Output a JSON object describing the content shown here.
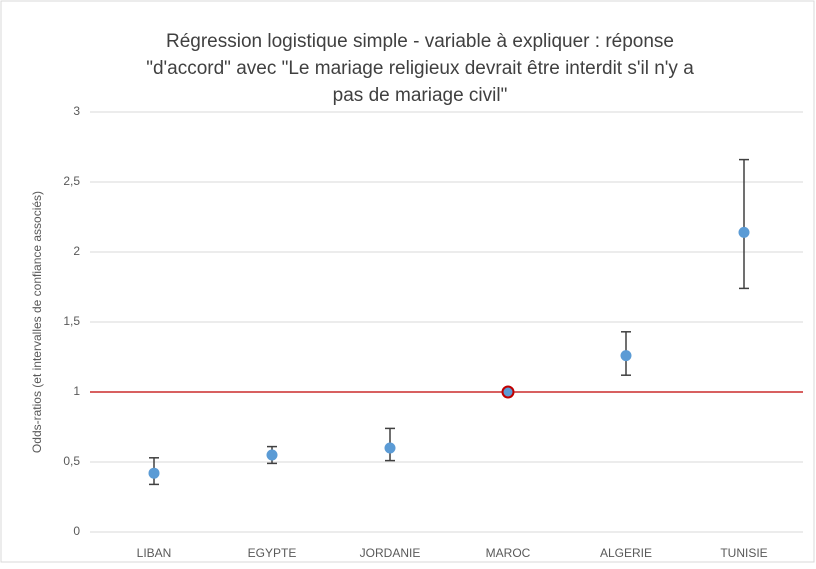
{
  "chart_data": {
    "type": "errorbar",
    "title": [
      "Régression logistique simple - variable à expliquer : réponse",
      "\"d'accord\" avec \"Le mariage religieux devrait être interdit s'il n'y a",
      "pas de mariage civil\""
    ],
    "y_label": "Odds-ratios (et intervalles de confiance associés)",
    "categories": [
      "LIBAN",
      "EGYPTE",
      "JORDANIE",
      "MAROC",
      "ALGERIE",
      "TUNISIE"
    ],
    "series": [
      {
        "color": "#5b9bd5",
        "values": [
          0.42,
          0.55,
          0.6,
          1,
          1.26,
          2.14
        ],
        "lower": [
          0.34,
          0.49,
          0.51,
          null,
          1.12,
          1.74
        ],
        "upper": [
          0.53,
          0.61,
          0.74,
          null,
          1.43,
          2.66
        ],
        "point_edge_colors": [
          null,
          null,
          null,
          "#c00000",
          null,
          null
        ]
      }
    ],
    "ylim": [
      0,
      3
    ],
    "yticks": [
      0,
      {
        "value": 0.5,
        "label": "0,5"
      },
      1,
      {
        "value": 1.5,
        "label": "1,5"
      },
      2,
      {
        "value": 2.5,
        "label": "2,5"
      },
      3
    ],
    "grid": true,
    "reference_line": {
      "value": 1,
      "color": "#c00000"
    },
    "errorbar_color": "#404040"
  }
}
